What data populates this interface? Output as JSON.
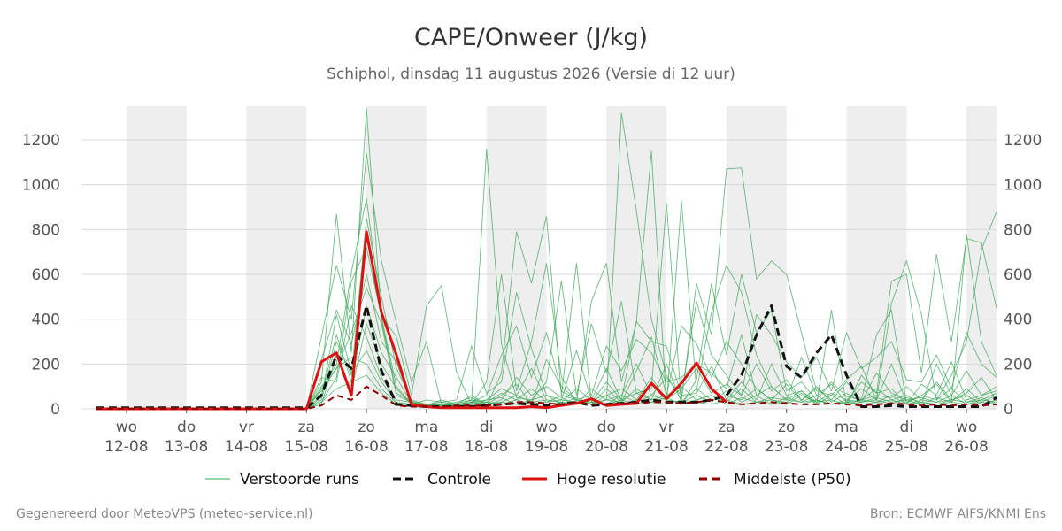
{
  "chart_data": {
    "type": "line",
    "title": "CAPE/Onweer (J/kg)",
    "subtitle": "Schiphol, dinsdag 11 augustus 2026 (Versie di 12 uur)",
    "ylabel": "",
    "xlabel": "",
    "ylim": [
      0,
      1350
    ],
    "yticks": [
      0,
      200,
      400,
      600,
      800,
      1000,
      1200
    ],
    "x_start": "2026-08-11 12:00",
    "x_end": "2026-08-26 12:00",
    "x_ticks": [
      {
        "day": "wo",
        "date": "12-08"
      },
      {
        "day": "do",
        "date": "13-08"
      },
      {
        "day": "vr",
        "date": "14-08"
      },
      {
        "day": "za",
        "date": "15-08"
      },
      {
        "day": "zo",
        "date": "16-08"
      },
      {
        "day": "ma",
        "date": "17-08"
      },
      {
        "day": "di",
        "date": "18-08"
      },
      {
        "day": "wo",
        "date": "19-08"
      },
      {
        "day": "do",
        "date": "20-08"
      },
      {
        "day": "vr",
        "date": "21-08"
      },
      {
        "day": "za",
        "date": "22-08"
      },
      {
        "day": "zo",
        "date": "23-08"
      },
      {
        "day": "ma",
        "date": "24-08"
      },
      {
        "day": "di",
        "date": "25-08"
      },
      {
        "day": "wo",
        "date": "26-08"
      }
    ],
    "x_dates": [
      "2026-08-11 12:00",
      "2026-08-11 18:00",
      "2026-08-12 00:00",
      "2026-08-12 06:00",
      "2026-08-12 12:00",
      "2026-08-12 18:00",
      "2026-08-13 00:00",
      "2026-08-13 06:00",
      "2026-08-13 12:00",
      "2026-08-13 18:00",
      "2026-08-14 00:00",
      "2026-08-14 06:00",
      "2026-08-14 12:00",
      "2026-08-14 18:00",
      "2026-08-15 00:00",
      "2026-08-15 06:00",
      "2026-08-15 12:00",
      "2026-08-15 18:00",
      "2026-08-16 00:00",
      "2026-08-16 06:00",
      "2026-08-16 12:00",
      "2026-08-16 18:00",
      "2026-08-17 00:00",
      "2026-08-17 06:00",
      "2026-08-17 12:00",
      "2026-08-17 18:00",
      "2026-08-18 00:00",
      "2026-08-18 06:00",
      "2026-08-18 12:00",
      "2026-08-18 18:00",
      "2026-08-19 00:00",
      "2026-08-19 06:00",
      "2026-08-19 12:00",
      "2026-08-19 18:00",
      "2026-08-20 00:00",
      "2026-08-20 06:00",
      "2026-08-20 12:00",
      "2026-08-20 18:00",
      "2026-08-21 00:00",
      "2026-08-21 06:00",
      "2026-08-21 12:00",
      "2026-08-21 18:00",
      "2026-08-22 00:00",
      "2026-08-22 06:00",
      "2026-08-22 12:00",
      "2026-08-22 18:00",
      "2026-08-23 00:00",
      "2026-08-23 06:00",
      "2026-08-23 12:00",
      "2026-08-23 18:00",
      "2026-08-24 00:00",
      "2026-08-24 06:00",
      "2026-08-24 12:00",
      "2026-08-24 18:00",
      "2026-08-25 00:00",
      "2026-08-25 06:00",
      "2026-08-25 12:00",
      "2026-08-25 18:00",
      "2026-08-26 00:00",
      "2026-08-26 06:00",
      "2026-08-26 12:00"
    ],
    "shaded_days": [
      "12-08",
      "14-08",
      "16-08",
      "18-08",
      "20-08",
      "22-08",
      "24-08",
      "26-08"
    ],
    "grid": true,
    "legend_position": "bottom",
    "ensemble_members": [
      {
        "values": [
          0,
          0,
          0,
          0,
          0,
          0,
          0,
          0,
          0,
          0,
          0,
          0,
          0,
          0,
          0,
          120,
          870,
          250,
          1340,
          400,
          70,
          35,
          15,
          10,
          25,
          40,
          10,
          160,
          790,
          560,
          860,
          60,
          650,
          30,
          40,
          1320,
          880,
          400,
          150,
          40,
          560,
          330,
          1070,
          1075,
          580,
          660,
          600,
          340,
          80,
          60,
          130,
          190,
          40,
          470,
          660,
          420,
          40,
          150,
          300,
          710,
          880
        ]
      },
      {
        "values": [
          0,
          0,
          0,
          0,
          0,
          0,
          0,
          0,
          0,
          0,
          0,
          0,
          0,
          0,
          0,
          320,
          640,
          400,
          1140,
          660,
          380,
          120,
          300,
          20,
          10,
          20,
          120,
          600,
          80,
          300,
          650,
          140,
          30,
          480,
          650,
          120,
          390,
          1150,
          20,
          930,
          80,
          430,
          640,
          520,
          240,
          100,
          40,
          80,
          20,
          440,
          15,
          150,
          70,
          570,
          600,
          160,
          690,
          300,
          760,
          740,
          450
        ]
      },
      {
        "values": [
          0,
          0,
          0,
          0,
          0,
          0,
          0,
          0,
          0,
          0,
          0,
          0,
          0,
          0,
          0,
          90,
          200,
          610,
          940,
          420,
          320,
          60,
          460,
          550,
          165,
          20,
          1160,
          290,
          50,
          40,
          120,
          570,
          60,
          380,
          160,
          480,
          70,
          90,
          920,
          20,
          130,
          560,
          240,
          600,
          340,
          440,
          80,
          120,
          40,
          120,
          55,
          40,
          330,
          440,
          25,
          60,
          110,
          30,
          780,
          300,
          150
        ]
      },
      {
        "values": [
          0,
          0,
          0,
          0,
          0,
          0,
          0,
          0,
          0,
          0,
          0,
          0,
          0,
          0,
          0,
          40,
          300,
          150,
          850,
          500,
          180,
          40,
          20,
          30,
          40,
          280,
          70,
          120,
          520,
          270,
          60,
          40,
          260,
          40,
          180,
          40,
          390,
          300,
          280,
          60,
          480,
          240,
          150,
          60,
          420,
          330,
          210,
          140,
          230,
          80,
          340,
          180,
          230,
          300,
          130,
          120,
          240,
          90,
          340,
          200,
          140
        ]
      },
      {
        "values": [
          0,
          0,
          0,
          0,
          0,
          0,
          0,
          0,
          0,
          0,
          0,
          0,
          0,
          0,
          0,
          30,
          140,
          570,
          720,
          410,
          100,
          20,
          15,
          40,
          20,
          30,
          60,
          240,
          370,
          140,
          340,
          80,
          40,
          20,
          90,
          30,
          170,
          320,
          60,
          370,
          290,
          140,
          300,
          200,
          90,
          40,
          110,
          35,
          100,
          30,
          70,
          30,
          160,
          70,
          40,
          20,
          200,
          60,
          170,
          60,
          100
        ]
      },
      {
        "values": [
          0,
          0,
          0,
          0,
          0,
          0,
          0,
          0,
          0,
          0,
          0,
          0,
          0,
          0,
          0,
          220,
          440,
          290,
          600,
          300,
          210,
          20,
          40,
          30,
          20,
          60,
          20,
          60,
          110,
          20,
          220,
          100,
          40,
          60,
          280,
          170,
          310,
          250,
          120,
          140,
          200,
          160,
          90,
          330,
          60,
          100,
          40,
          230,
          60,
          110,
          30,
          120,
          70,
          90,
          20,
          110,
          60,
          210,
          40,
          60,
          80
        ]
      },
      {
        "values": [
          0,
          0,
          0,
          0,
          0,
          0,
          0,
          0,
          0,
          0,
          0,
          0,
          0,
          0,
          0,
          100,
          180,
          340,
          540,
          380,
          60,
          30,
          20,
          15,
          10,
          30,
          40,
          90,
          60,
          180,
          40,
          30,
          90,
          40,
          60,
          90,
          40,
          140,
          40,
          90,
          180,
          70,
          110,
          60,
          200,
          80,
          130,
          40,
          90,
          40,
          120,
          40,
          60,
          50,
          100,
          40,
          120,
          40,
          70,
          140,
          40
        ]
      },
      {
        "values": [
          0,
          0,
          0,
          0,
          0,
          0,
          0,
          0,
          0,
          0,
          0,
          0,
          0,
          0,
          0,
          60,
          330,
          120,
          460,
          250,
          140,
          25,
          20,
          20,
          30,
          50,
          20,
          40,
          140,
          60,
          100,
          50,
          20,
          90,
          40,
          60,
          200,
          60,
          140,
          60,
          70,
          190,
          40,
          120,
          40,
          200,
          60,
          80,
          30,
          70,
          40,
          90,
          40,
          200,
          30,
          60,
          40,
          90,
          30,
          40,
          70
        ]
      },
      {
        "values": [
          0,
          0,
          0,
          0,
          0,
          0,
          0,
          0,
          0,
          0,
          0,
          0,
          0,
          0,
          0,
          20,
          240,
          80,
          380,
          200,
          90,
          20,
          15,
          20,
          15,
          40,
          30,
          70,
          40,
          90,
          30,
          60,
          40,
          30,
          120,
          40,
          70,
          40,
          200,
          30,
          90,
          40,
          60,
          40,
          90,
          40,
          30,
          70,
          20,
          60,
          20,
          40,
          90,
          40,
          60,
          20,
          50,
          30,
          90,
          30,
          60
        ]
      },
      {
        "values": [
          0,
          0,
          0,
          0,
          0,
          0,
          0,
          0,
          0,
          0,
          0,
          0,
          0,
          0,
          0,
          140,
          120,
          460,
          320,
          140,
          40,
          30,
          10,
          20,
          20,
          20,
          40,
          50,
          20,
          40,
          60,
          20,
          50,
          20,
          40,
          30,
          90,
          40,
          60,
          100,
          40,
          60,
          30,
          90,
          30,
          50,
          40,
          30,
          60,
          20,
          40,
          30,
          50,
          30,
          40,
          50,
          30,
          40,
          60,
          20,
          40
        ]
      },
      {
        "values": [
          0,
          0,
          0,
          0,
          0,
          0,
          0,
          0,
          0,
          0,
          0,
          0,
          0,
          0,
          0,
          50,
          420,
          160,
          260,
          120,
          30,
          20,
          20,
          15,
          20,
          30,
          20,
          30,
          60,
          30,
          40,
          30,
          20,
          40,
          20,
          60,
          30,
          60,
          40,
          30,
          60,
          30,
          80,
          30,
          60,
          20,
          50,
          30,
          40,
          20,
          30,
          40,
          30,
          60,
          20,
          40,
          30,
          60,
          20,
          40,
          30
        ]
      },
      {
        "values": [
          0,
          0,
          0,
          0,
          0,
          0,
          0,
          0,
          0,
          0,
          0,
          0,
          0,
          0,
          0,
          80,
          180,
          230,
          200,
          90,
          25,
          15,
          15,
          10,
          15,
          20,
          30,
          20,
          40,
          20,
          30,
          40,
          30,
          20,
          60,
          20,
          40,
          30,
          50,
          20,
          40,
          60,
          20,
          50,
          30,
          40,
          20,
          60,
          30,
          40,
          20,
          30,
          40,
          20,
          50,
          30,
          20,
          40,
          30,
          50,
          20
        ]
      },
      {
        "values": [
          0,
          0,
          0,
          0,
          0,
          0,
          0,
          0,
          0,
          0,
          0,
          0,
          0,
          0,
          0,
          30,
          90,
          120,
          150,
          70,
          20,
          10,
          10,
          10,
          10,
          15,
          20,
          30,
          20,
          30,
          20,
          30,
          20,
          30,
          20,
          40,
          20,
          30,
          20,
          40,
          30,
          20,
          40,
          20,
          30,
          20,
          30,
          20,
          40,
          20,
          30,
          20,
          30,
          40,
          20,
          30,
          20,
          30,
          20,
          30,
          20
        ]
      }
    ],
    "series": [
      {
        "name": "Controle",
        "style": "dashed",
        "color": "#111111",
        "values": [
          5,
          5,
          5,
          5,
          5,
          5,
          5,
          5,
          5,
          5,
          5,
          5,
          5,
          5,
          5,
          60,
          240,
          180,
          460,
          170,
          20,
          15,
          10,
          10,
          10,
          10,
          15,
          20,
          25,
          20,
          15,
          20,
          30,
          15,
          20,
          25,
          30,
          40,
          30,
          30,
          30,
          40,
          60,
          150,
          330,
          460,
          190,
          140,
          250,
          330,
          150,
          10,
          10,
          15,
          10,
          10,
          10,
          10,
          10,
          10,
          50
        ]
      },
      {
        "name": "Hoge resolutie",
        "style": "solid",
        "color": "#dd1111",
        "values": [
          0,
          0,
          0,
          0,
          0,
          0,
          0,
          0,
          0,
          0,
          0,
          0,
          0,
          0,
          0,
          210,
          250,
          60,
          790,
          430,
          240,
          20,
          10,
          5,
          5,
          5,
          5,
          5,
          5,
          10,
          5,
          15,
          25,
          45,
          15,
          20,
          25,
          115,
          45,
          115,
          205,
          90,
          30,
          null,
          null,
          null,
          null,
          null,
          null,
          null,
          null,
          null,
          null,
          null,
          null,
          null,
          null,
          null,
          null,
          null,
          null
        ]
      },
      {
        "name": "Middelste (P50)",
        "style": "dashed",
        "color": "#8b0000",
        "values": [
          0,
          0,
          0,
          0,
          0,
          0,
          0,
          0,
          0,
          0,
          0,
          0,
          0,
          0,
          0,
          15,
          60,
          40,
          100,
          60,
          15,
          10,
          10,
          10,
          15,
          15,
          15,
          20,
          30,
          30,
          25,
          20,
          30,
          20,
          20,
          25,
          25,
          30,
          30,
          25,
          30,
          40,
          30,
          20,
          25,
          30,
          25,
          20,
          20,
          25,
          20,
          15,
          20,
          25,
          20,
          15,
          20,
          15,
          20,
          15,
          20
        ]
      }
    ],
    "legend": [
      {
        "label": "Verstoorde runs",
        "style": "thin",
        "color": "#3aa655"
      },
      {
        "label": "Controle",
        "style": "dashed",
        "color": "#111111"
      },
      {
        "label": "Hoge resolutie",
        "style": "solid",
        "color": "#dd1111"
      },
      {
        "label": "Middelste (P50)",
        "style": "dashed",
        "color": "#8b0000"
      }
    ]
  },
  "footer": {
    "left": "Gegenereerd door MeteoVPS (meteo-service.nl)",
    "right": "Bron: ECMWF AIFS/KNMI Ens"
  },
  "colors": {
    "ensemble": "#3aa655",
    "shade": "#eeeeee",
    "grid": "#d8d8d8"
  }
}
